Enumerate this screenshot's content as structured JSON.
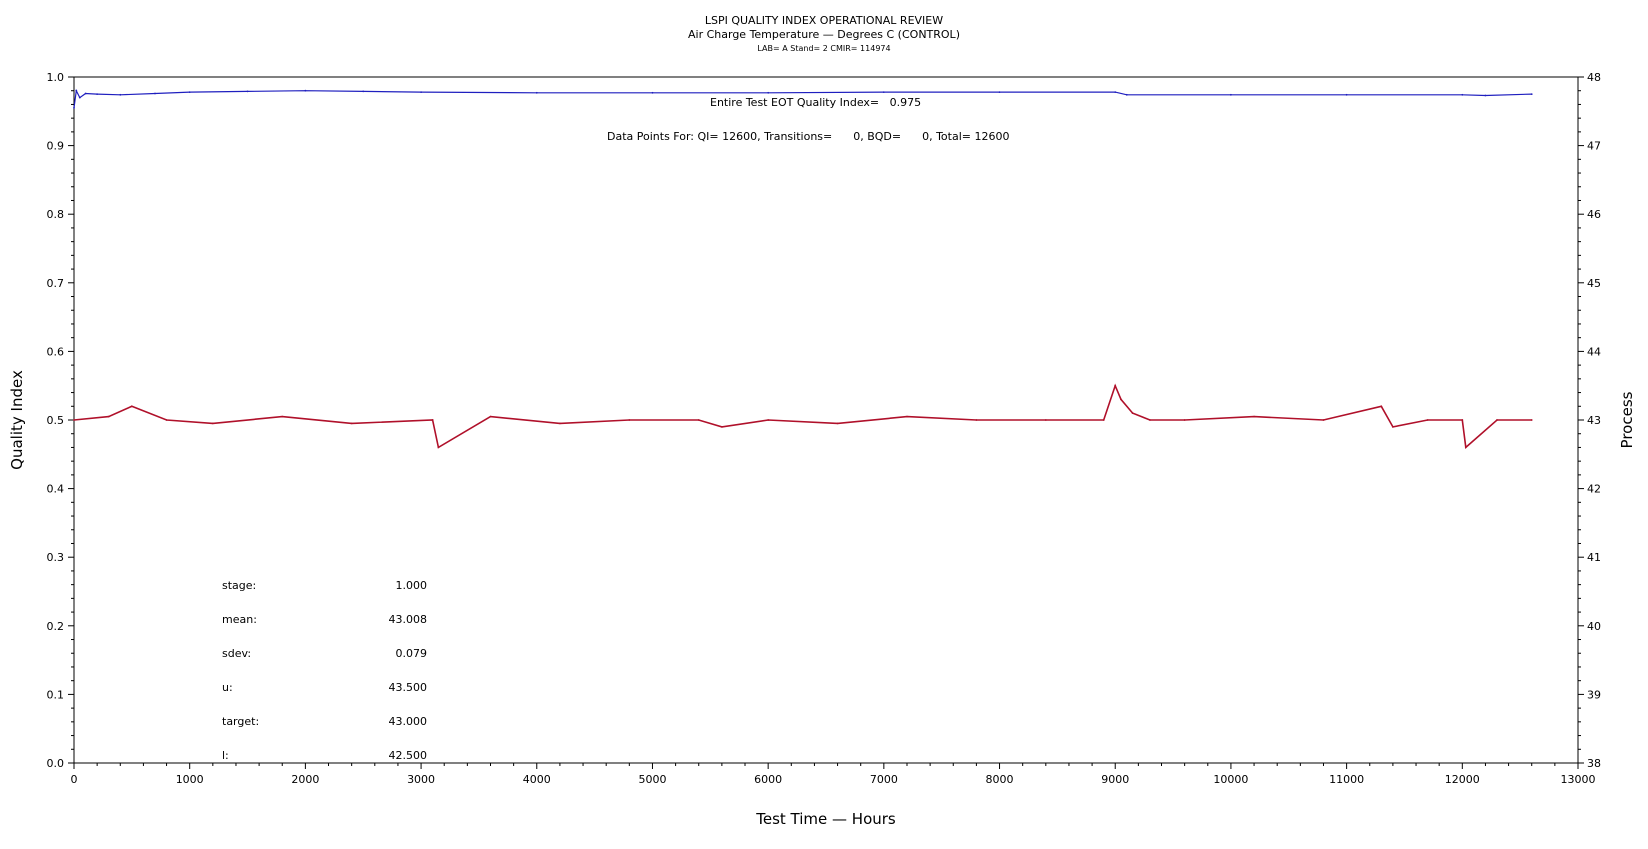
{
  "chart_data": {
    "type": "line",
    "title": "LSPI QUALITY INDEX OPERATIONAL REVIEW",
    "subtitle": "Air Charge Temperature — Degrees C (CONTROL)",
    "subsubtitle": "LAB= A Stand= 2 CMIR= 114974",
    "annotations": {
      "qi_text": "Entire Test EOT Quality Index=   0.975",
      "points_text": "Data Points For: QI= 12600, Transitions=      0, BQD=      0, Total= 12600"
    },
    "xlabel": "Test Time — Hours",
    "ylabel_left": "Quality Index",
    "ylabel_right": "Process",
    "xlim": [
      0,
      13000
    ],
    "ylim_left": [
      0.0,
      1.0
    ],
    "ylim_right": [
      38,
      48
    ],
    "x_ticks": [
      "0",
      "1000",
      "2000",
      "3000",
      "4000",
      "5000",
      "6000",
      "7000",
      "8000",
      "9000",
      "10000",
      "11000",
      "12000",
      "13000"
    ],
    "y_left_ticks": [
      "0.0",
      "0.1",
      "0.2",
      "0.3",
      "0.4",
      "0.5",
      "0.6",
      "0.7",
      "0.8",
      "0.9",
      "1.0"
    ],
    "y_right_ticks": [
      "38",
      "39",
      "40",
      "41",
      "42",
      "43",
      "44",
      "45",
      "46",
      "47",
      "48"
    ],
    "colors": {
      "quality": "#1f1fbf",
      "process": "#b0102a"
    },
    "series": [
      {
        "axis": "left",
        "x": [
          0,
          20,
          50,
          100,
          200,
          400,
          700,
          1000,
          1500,
          2000,
          2500,
          3000,
          4000,
          5000,
          6000,
          7000,
          8000,
          9000,
          9100,
          10000,
          11000,
          12000,
          12200,
          12600
        ],
        "values": [
          0.955,
          0.98,
          0.97,
          0.976,
          0.975,
          0.974,
          0.976,
          0.978,
          0.979,
          0.98,
          0.979,
          0.978,
          0.977,
          0.977,
          0.977,
          0.978,
          0.978,
          0.978,
          0.974,
          0.974,
          0.974,
          0.974,
          0.973,
          0.975
        ]
      },
      {
        "axis": "right",
        "x": [
          0,
          300,
          500,
          800,
          1200,
          1800,
          2400,
          3100,
          3150,
          3600,
          4200,
          4800,
          5400,
          5600,
          6000,
          6600,
          7200,
          7800,
          8400,
          8900,
          9000,
          9050,
          9150,
          9300,
          9600,
          10200,
          10800,
          11300,
          11400,
          11700,
          12000,
          12030,
          12300,
          12600
        ],
        "values": [
          43.0,
          43.05,
          43.2,
          43.0,
          42.95,
          43.05,
          42.95,
          43.0,
          42.6,
          43.05,
          42.95,
          43.0,
          43.0,
          42.9,
          43.0,
          42.95,
          43.05,
          43.0,
          43.0,
          43.0,
          43.5,
          43.3,
          43.1,
          43.0,
          43.0,
          43.05,
          43.0,
          43.2,
          42.9,
          43.0,
          43.0,
          42.6,
          43.0,
          43.0
        ]
      }
    ],
    "stats": [
      {
        "label": "stage:",
        "value": "1.000"
      },
      {
        "label": "mean:",
        "value": "43.008"
      },
      {
        "label": "sdev:",
        "value": "0.079"
      },
      {
        "label": "u:",
        "value": "43.500"
      },
      {
        "label": "target:",
        "value": "43.000"
      },
      {
        "label": "l:",
        "value": "42.500"
      }
    ]
  }
}
